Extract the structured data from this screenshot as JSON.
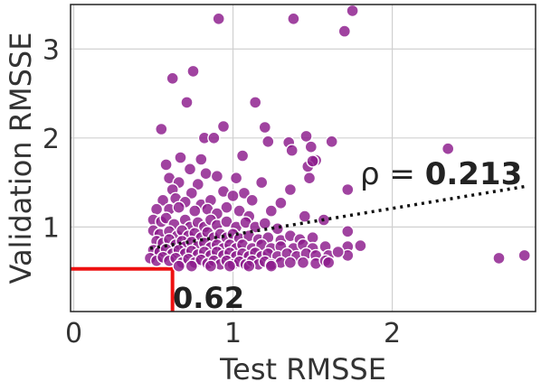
{
  "chart_data": {
    "type": "scatter",
    "title": "",
    "xlabel": "Test RMSSE",
    "ylabel": "Validation RMSSE",
    "xlim": [
      -0.02,
      2.9
    ],
    "ylim": [
      0.05,
      3.5
    ],
    "x_ticks": [
      0,
      1,
      2
    ],
    "y_ticks": [
      1,
      2,
      3
    ],
    "grid": true,
    "colors": {
      "points": "#8b1a8b",
      "point_edge": "#ffffff",
      "trend": "#111111",
      "threshold": "#ee1111"
    },
    "annotation": {
      "rho_prefix": "ρ = ",
      "rho_value": "0.213",
      "threshold_label": "0.62"
    },
    "threshold": {
      "x": 0.62,
      "y": 0.53
    },
    "trend_line": {
      "x": [
        0.48,
        2.85
      ],
      "y": [
        0.76,
        1.46
      ]
    },
    "series": [
      {
        "points": [
          [
            0.91,
            3.34
          ],
          [
            1.38,
            3.34
          ],
          [
            1.75,
            3.43
          ],
          [
            1.7,
            3.2
          ],
          [
            0.75,
            2.75
          ],
          [
            0.62,
            2.67
          ],
          [
            0.71,
            2.4
          ],
          [
            1.14,
            2.4
          ],
          [
            0.55,
            2.1
          ],
          [
            0.94,
            2.13
          ],
          [
            1.2,
            2.12
          ],
          [
            0.82,
            2.0
          ],
          [
            0.88,
            2.0
          ],
          [
            1.22,
            1.96
          ],
          [
            1.46,
            2.02
          ],
          [
            1.35,
            1.95
          ],
          [
            1.62,
            1.96
          ],
          [
            2.35,
            1.88
          ],
          [
            1.37,
            1.86
          ],
          [
            1.49,
            1.9
          ],
          [
            0.67,
            1.78
          ],
          [
            0.8,
            1.76
          ],
          [
            1.06,
            1.8
          ],
          [
            1.52,
            1.75
          ],
          [
            1.47,
            1.68
          ],
          [
            1.5,
            1.74
          ],
          [
            0.58,
            1.7
          ],
          [
            0.73,
            1.65
          ],
          [
            0.83,
            1.6
          ],
          [
            0.9,
            1.57
          ],
          [
            0.6,
            1.55
          ],
          [
            0.66,
            1.5
          ],
          [
            0.78,
            1.48
          ],
          [
            1.02,
            1.55
          ],
          [
            1.18,
            1.5
          ],
          [
            1.48,
            1.55
          ],
          [
            0.62,
            1.42
          ],
          [
            0.74,
            1.38
          ],
          [
            0.94,
            1.4
          ],
          [
            1.07,
            1.38
          ],
          [
            1.36,
            1.42
          ],
          [
            1.72,
            1.42
          ],
          [
            0.56,
            1.3
          ],
          [
            0.64,
            1.32
          ],
          [
            0.7,
            1.28
          ],
          [
            0.8,
            1.25
          ],
          [
            0.86,
            1.3
          ],
          [
            0.96,
            1.22
          ],
          [
            1.0,
            1.35
          ],
          [
            1.12,
            1.3
          ],
          [
            1.3,
            1.27
          ],
          [
            0.52,
            1.2
          ],
          [
            0.6,
            1.2
          ],
          [
            0.66,
            1.22
          ],
          [
            0.76,
            1.18
          ],
          [
            0.84,
            1.2
          ],
          [
            0.9,
            1.15
          ],
          [
            1.04,
            1.18
          ],
          [
            1.1,
            1.12
          ],
          [
            1.24,
            1.18
          ],
          [
            1.45,
            1.12
          ],
          [
            1.57,
            1.08
          ],
          [
            0.5,
            1.08
          ],
          [
            0.55,
            1.06
          ],
          [
            0.58,
            1.1
          ],
          [
            0.63,
            1.03
          ],
          [
            0.7,
            1.08
          ],
          [
            0.73,
            1.0
          ],
          [
            0.78,
            1.05
          ],
          [
            0.82,
            1.0
          ],
          [
            0.86,
            1.08
          ],
          [
            0.9,
            1.02
          ],
          [
            0.96,
            1.06
          ],
          [
            1.02,
            1.0
          ],
          [
            1.08,
            1.05
          ],
          [
            1.14,
            1.0
          ],
          [
            1.2,
            1.04
          ],
          [
            1.28,
            0.98
          ],
          [
            1.72,
            0.95
          ],
          [
            0.5,
            0.96
          ],
          [
            0.54,
            0.92
          ],
          [
            0.6,
            0.95
          ],
          [
            0.65,
            0.9
          ],
          [
            0.68,
            0.96
          ],
          [
            0.72,
            0.9
          ],
          [
            0.76,
            0.93
          ],
          [
            0.8,
            0.88
          ],
          [
            0.84,
            0.94
          ],
          [
            0.88,
            0.88
          ],
          [
            0.92,
            0.92
          ],
          [
            0.96,
            0.88
          ],
          [
            1.0,
            0.92
          ],
          [
            1.04,
            0.87
          ],
          [
            1.1,
            0.9
          ],
          [
            1.16,
            0.86
          ],
          [
            1.22,
            0.88
          ],
          [
            1.3,
            0.85
          ],
          [
            1.36,
            0.9
          ],
          [
            1.42,
            0.86
          ],
          [
            1.5,
            0.88
          ],
          [
            0.52,
            0.84
          ],
          [
            0.56,
            0.82
          ],
          [
            0.6,
            0.86
          ],
          [
            0.64,
            0.8
          ],
          [
            0.68,
            0.84
          ],
          [
            0.7,
            0.78
          ],
          [
            0.74,
            0.83
          ],
          [
            0.78,
            0.78
          ],
          [
            0.82,
            0.82
          ],
          [
            0.86,
            0.77
          ],
          [
            0.9,
            0.8
          ],
          [
            0.94,
            0.76
          ],
          [
            0.98,
            0.8
          ],
          [
            1.02,
            0.76
          ],
          [
            1.06,
            0.8
          ],
          [
            1.12,
            0.76
          ],
          [
            1.18,
            0.8
          ],
          [
            1.24,
            0.76
          ],
          [
            1.3,
            0.78
          ],
          [
            1.38,
            0.76
          ],
          [
            1.44,
            0.8
          ],
          [
            1.5,
            0.76
          ],
          [
            1.58,
            0.78
          ],
          [
            1.72,
            0.78
          ],
          [
            1.8,
            0.79
          ],
          [
            0.5,
            0.74
          ],
          [
            0.54,
            0.72
          ],
          [
            0.58,
            0.75
          ],
          [
            0.62,
            0.7
          ],
          [
            0.66,
            0.74
          ],
          [
            0.7,
            0.7
          ],
          [
            0.74,
            0.73
          ],
          [
            0.78,
            0.69
          ],
          [
            0.82,
            0.72
          ],
          [
            0.86,
            0.68
          ],
          [
            0.9,
            0.72
          ],
          [
            0.94,
            0.68
          ],
          [
            0.98,
            0.71
          ],
          [
            1.02,
            0.67
          ],
          [
            1.06,
            0.7
          ],
          [
            1.1,
            0.67
          ],
          [
            1.14,
            0.71
          ],
          [
            1.18,
            0.67
          ],
          [
            1.22,
            0.7
          ],
          [
            1.28,
            0.67
          ],
          [
            1.34,
            0.7
          ],
          [
            1.4,
            0.67
          ],
          [
            1.46,
            0.7
          ],
          [
            1.52,
            0.68
          ],
          [
            1.6,
            0.68
          ],
          [
            1.72,
            0.68
          ],
          [
            0.48,
            0.65
          ],
          [
            0.52,
            0.62
          ],
          [
            0.56,
            0.66
          ],
          [
            0.6,
            0.62
          ],
          [
            0.64,
            0.65
          ],
          [
            0.68,
            0.6
          ],
          [
            0.72,
            0.64
          ],
          [
            0.76,
            0.6
          ],
          [
            0.8,
            0.63
          ],
          [
            0.84,
            0.59
          ],
          [
            0.88,
            0.62
          ],
          [
            0.92,
            0.58
          ],
          [
            0.96,
            0.62
          ],
          [
            1.0,
            0.58
          ],
          [
            1.04,
            0.61
          ],
          [
            1.08,
            0.58
          ],
          [
            1.12,
            0.62
          ],
          [
            1.16,
            0.58
          ],
          [
            1.2,
            0.61
          ],
          [
            1.24,
            0.58
          ],
          [
            1.3,
            0.6
          ],
          [
            1.36,
            0.6
          ],
          [
            1.44,
            0.6
          ],
          [
            1.52,
            0.59
          ],
          [
            1.58,
            0.62
          ],
          [
            0.66,
            0.56
          ],
          [
            0.74,
            0.56
          ],
          [
            0.86,
            0.56
          ],
          [
            0.98,
            0.56
          ],
          [
            1.1,
            0.56
          ],
          [
            1.24,
            0.56
          ],
          [
            1.6,
            0.6
          ],
          [
            1.66,
            0.72
          ],
          [
            2.67,
            0.65
          ],
          [
            2.83,
            0.68
          ]
        ]
      }
    ]
  }
}
